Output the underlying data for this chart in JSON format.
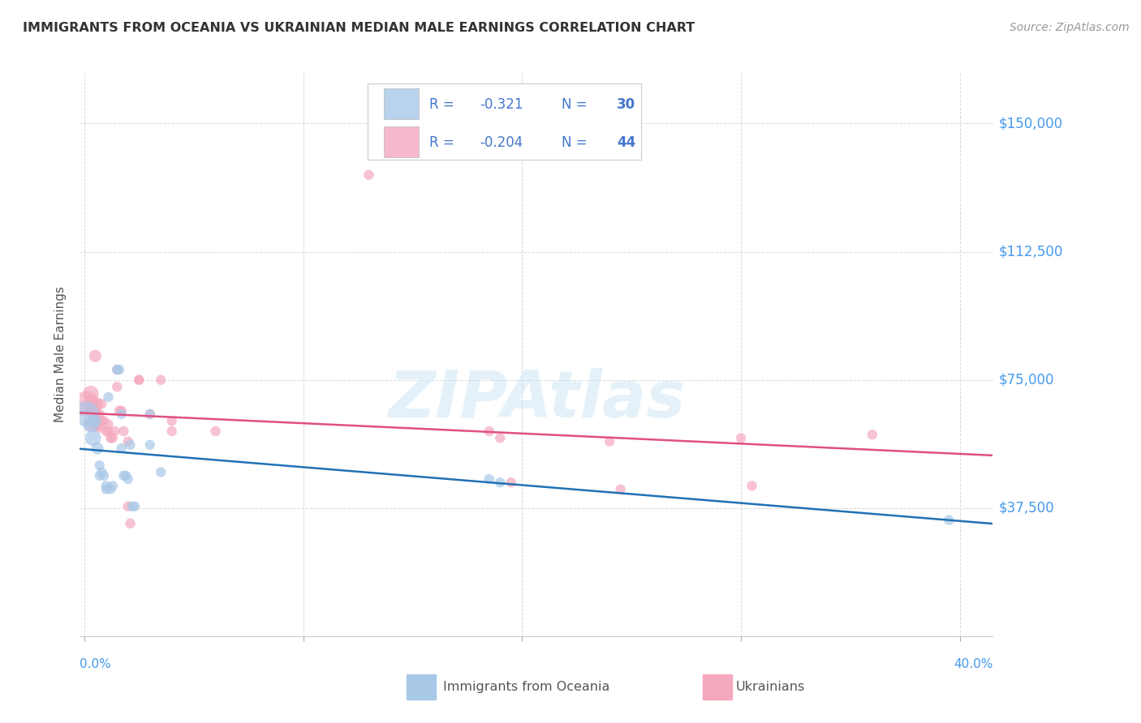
{
  "title": "IMMIGRANTS FROM OCEANIA VS UKRAINIAN MEDIAN MALE EARNINGS CORRELATION CHART",
  "source": "Source: ZipAtlas.com",
  "ylabel": "Median Male Earnings",
  "ytick_labels": [
    "$150,000",
    "$112,500",
    "$75,000",
    "$37,500"
  ],
  "ytick_values": [
    150000,
    112500,
    75000,
    37500
  ],
  "ymin": 0,
  "ymax": 165000,
  "xmin": -0.002,
  "xmax": 0.415,
  "blue_color": "#a8c8e8",
  "pink_color": "#f4a8be",
  "blue_line_color": "#2171b5",
  "pink_line_color": "#e05080",
  "legend_text_color": "#4477cc",
  "legend_r_color": "#2255bb",
  "text_color": "#333333",
  "blue_scatter": [
    [
      0.001,
      65000
    ],
    [
      0.003,
      62000
    ],
    [
      0.004,
      58000
    ],
    [
      0.005,
      63000
    ],
    [
      0.006,
      55000
    ],
    [
      0.007,
      50000
    ],
    [
      0.007,
      47000
    ],
    [
      0.008,
      48000
    ],
    [
      0.009,
      47000
    ],
    [
      0.01,
      44000
    ],
    [
      0.01,
      43000
    ],
    [
      0.011,
      70000
    ],
    [
      0.012,
      43000
    ],
    [
      0.013,
      44000
    ],
    [
      0.015,
      78000
    ],
    [
      0.016,
      78000
    ],
    [
      0.017,
      65000
    ],
    [
      0.017,
      55000
    ],
    [
      0.018,
      47000
    ],
    [
      0.019,
      47000
    ],
    [
      0.02,
      46000
    ],
    [
      0.021,
      56000
    ],
    [
      0.022,
      38000
    ],
    [
      0.023,
      38000
    ],
    [
      0.03,
      65000
    ],
    [
      0.03,
      56000
    ],
    [
      0.035,
      48000
    ],
    [
      0.185,
      46000
    ],
    [
      0.19,
      45000
    ],
    [
      0.395,
      34000
    ]
  ],
  "pink_scatter": [
    [
      0.001,
      68000
    ],
    [
      0.003,
      71000
    ],
    [
      0.003,
      68000
    ],
    [
      0.004,
      66000
    ],
    [
      0.004,
      62000
    ],
    [
      0.005,
      82000
    ],
    [
      0.005,
      65000
    ],
    [
      0.006,
      68000
    ],
    [
      0.006,
      62000
    ],
    [
      0.007,
      65000
    ],
    [
      0.007,
      61000
    ],
    [
      0.008,
      68000
    ],
    [
      0.008,
      63000
    ],
    [
      0.009,
      63000
    ],
    [
      0.01,
      60000
    ],
    [
      0.011,
      62000
    ],
    [
      0.011,
      60000
    ],
    [
      0.012,
      58000
    ],
    [
      0.013,
      58000
    ],
    [
      0.014,
      60000
    ],
    [
      0.015,
      78000
    ],
    [
      0.015,
      73000
    ],
    [
      0.016,
      66000
    ],
    [
      0.017,
      66000
    ],
    [
      0.018,
      60000
    ],
    [
      0.02,
      57000
    ],
    [
      0.02,
      38000
    ],
    [
      0.021,
      33000
    ],
    [
      0.025,
      75000
    ],
    [
      0.025,
      75000
    ],
    [
      0.03,
      65000
    ],
    [
      0.035,
      75000
    ],
    [
      0.04,
      63000
    ],
    [
      0.04,
      60000
    ],
    [
      0.06,
      60000
    ],
    [
      0.13,
      135000
    ],
    [
      0.185,
      60000
    ],
    [
      0.19,
      58000
    ],
    [
      0.195,
      45000
    ],
    [
      0.24,
      57000
    ],
    [
      0.245,
      43000
    ],
    [
      0.3,
      58000
    ],
    [
      0.305,
      44000
    ],
    [
      0.36,
      59000
    ]
  ],
  "bg_color": "#ffffff",
  "grid_color": "#d8d8d8",
  "watermark_color": "#cce4f5",
  "watermark_alpha": 0.5
}
